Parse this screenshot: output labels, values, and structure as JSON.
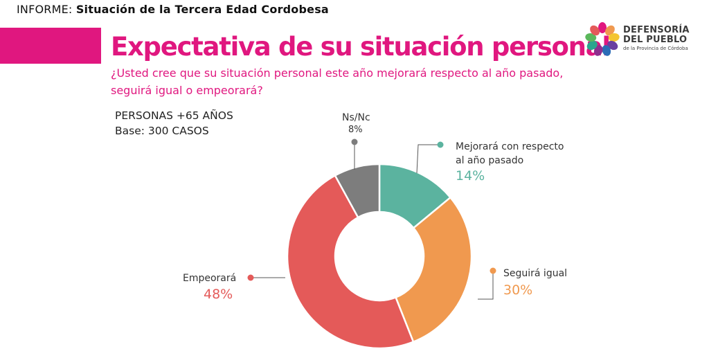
{
  "header": {
    "informe_prefix": "INFORME:",
    "informe_title": "Situación de la Tercera Edad Cordobesa",
    "title": "Expectativa de su situación personal",
    "subtitle_line1": "¿Usted cree que su situación personal este año mejorará respecto al año pasado,",
    "subtitle_line2": "seguirá igual o empeorará?"
  },
  "base": {
    "line1": "PERSONAS +65 AÑOS",
    "line2": "Base: 300 CASOS"
  },
  "logo": {
    "line1": "DEFENSORÍA",
    "line2": "DEL PUEBLO",
    "line3": "de la Provincia de Córdoba"
  },
  "chart_data": {
    "type": "pie",
    "categories": [
      "Mejorará con respecto al año pasado",
      "Seguirá igual",
      "Empeorará",
      "Ns/Nc"
    ],
    "values": [
      14,
      30,
      48,
      8
    ],
    "value_labels": [
      "14%",
      "30%",
      "48%",
      "8%"
    ],
    "colors": [
      "#5bb39f",
      "#f0994f",
      "#e45a59",
      "#7d7d7d"
    ],
    "donut": true
  },
  "labels": {
    "mejorara_line1": "Mejorará con respecto",
    "mejorara_line2": "al año pasado",
    "seguira": "Seguirá igual",
    "empeorara": "Empeorará",
    "nsnc": "Ns/Nc"
  }
}
